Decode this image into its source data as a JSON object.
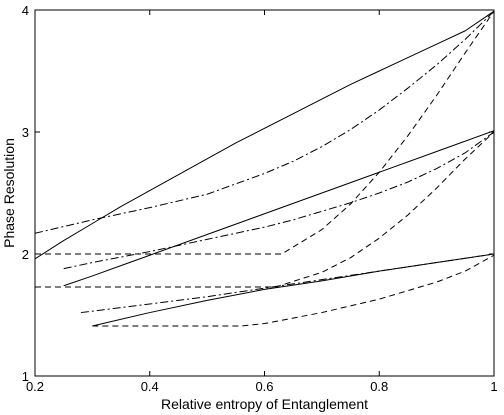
{
  "chart_data": {
    "type": "line",
    "title": "",
    "xlabel": "Relative entropy of Entanglement",
    "ylabel": "Phase Resolution",
    "xlim": [
      0.2,
      1.0
    ],
    "ylim": [
      1,
      4
    ],
    "xticks": [
      0.2,
      0.4,
      0.6,
      0.8,
      1.0
    ],
    "xtick_labels": [
      "0.2",
      "0.4",
      "0.6",
      "0.8",
      "1"
    ],
    "yticks": [
      1,
      2,
      3,
      4
    ],
    "ytick_labels": [
      "1",
      "2",
      "3",
      "4"
    ],
    "grid": false,
    "legend": "none",
    "series": [
      {
        "style": "solid",
        "color": "#000000",
        "x": [
          0.2,
          0.25,
          0.3,
          0.35,
          0.4,
          0.45,
          0.5,
          0.55,
          0.6,
          0.65,
          0.7,
          0.75,
          0.8,
          0.85,
          0.9,
          0.95,
          1.0
        ],
        "y": [
          1.96,
          2.11,
          2.25,
          2.39,
          2.52,
          2.65,
          2.78,
          2.91,
          3.03,
          3.15,
          3.27,
          3.39,
          3.5,
          3.61,
          3.72,
          3.83,
          3.99
        ]
      },
      {
        "style": "dashdot",
        "color": "#000000",
        "x": [
          0.2,
          0.3,
          0.4,
          0.5,
          0.6,
          0.65,
          0.7,
          0.75,
          0.8,
          0.85,
          0.9,
          0.95,
          1.0
        ],
        "y": [
          2.17,
          2.28,
          2.38,
          2.49,
          2.66,
          2.76,
          2.88,
          3.02,
          3.18,
          3.36,
          3.55,
          3.76,
          3.99
        ]
      },
      {
        "style": "dashed",
        "color": "#000000",
        "x": [
          0.2,
          0.3,
          0.4,
          0.5,
          0.6,
          0.63,
          0.7,
          0.75,
          0.8,
          0.85,
          0.9,
          0.95,
          1.0
        ],
        "y": [
          2.0,
          2.0,
          2.0,
          2.0,
          2.0,
          2.0,
          2.2,
          2.41,
          2.67,
          2.97,
          3.3,
          3.65,
          3.99
        ]
      },
      {
        "style": "solid",
        "color": "#000000",
        "x": [
          0.25,
          0.3,
          0.4,
          0.5,
          0.6,
          0.7,
          0.8,
          0.9,
          1.0
        ],
        "y": [
          1.74,
          1.82,
          1.99,
          2.16,
          2.33,
          2.5,
          2.67,
          2.84,
          3.01
        ]
      },
      {
        "style": "dashdot",
        "color": "#000000",
        "x": [
          0.25,
          0.3,
          0.4,
          0.5,
          0.6,
          0.65,
          0.7,
          0.75,
          0.8,
          0.85,
          0.9,
          0.95,
          1.0
        ],
        "y": [
          1.88,
          1.93,
          2.02,
          2.12,
          2.22,
          2.28,
          2.35,
          2.42,
          2.5,
          2.59,
          2.7,
          2.83,
          3.0
        ]
      },
      {
        "style": "dashed",
        "color": "#000000",
        "x": [
          0.2,
          0.3,
          0.4,
          0.5,
          0.6,
          0.62,
          0.7,
          0.75,
          0.8,
          0.85,
          0.9,
          0.95,
          1.0
        ],
        "y": [
          1.73,
          1.73,
          1.73,
          1.73,
          1.73,
          1.73,
          1.85,
          1.97,
          2.13,
          2.32,
          2.54,
          2.78,
          3.0
        ]
      },
      {
        "style": "solid",
        "color": "#000000",
        "x": [
          0.3,
          0.4,
          0.5,
          0.6,
          0.7,
          0.8,
          0.9,
          1.0
        ],
        "y": [
          1.41,
          1.52,
          1.62,
          1.71,
          1.78,
          1.86,
          1.93,
          2.0
        ]
      },
      {
        "style": "dashdot",
        "color": "#000000",
        "x": [
          0.28,
          0.4,
          0.5,
          0.6,
          0.7,
          0.8,
          0.9,
          1.0
        ],
        "y": [
          1.52,
          1.59,
          1.65,
          1.72,
          1.79,
          1.86,
          1.93,
          2.0
        ]
      },
      {
        "style": "dashed",
        "color": "#000000",
        "x": [
          0.3,
          0.4,
          0.5,
          0.56,
          0.6,
          0.7,
          0.8,
          0.9,
          0.95,
          1.0
        ],
        "y": [
          1.41,
          1.41,
          1.41,
          1.41,
          1.43,
          1.52,
          1.63,
          1.77,
          1.86,
          1.99
        ]
      }
    ]
  }
}
